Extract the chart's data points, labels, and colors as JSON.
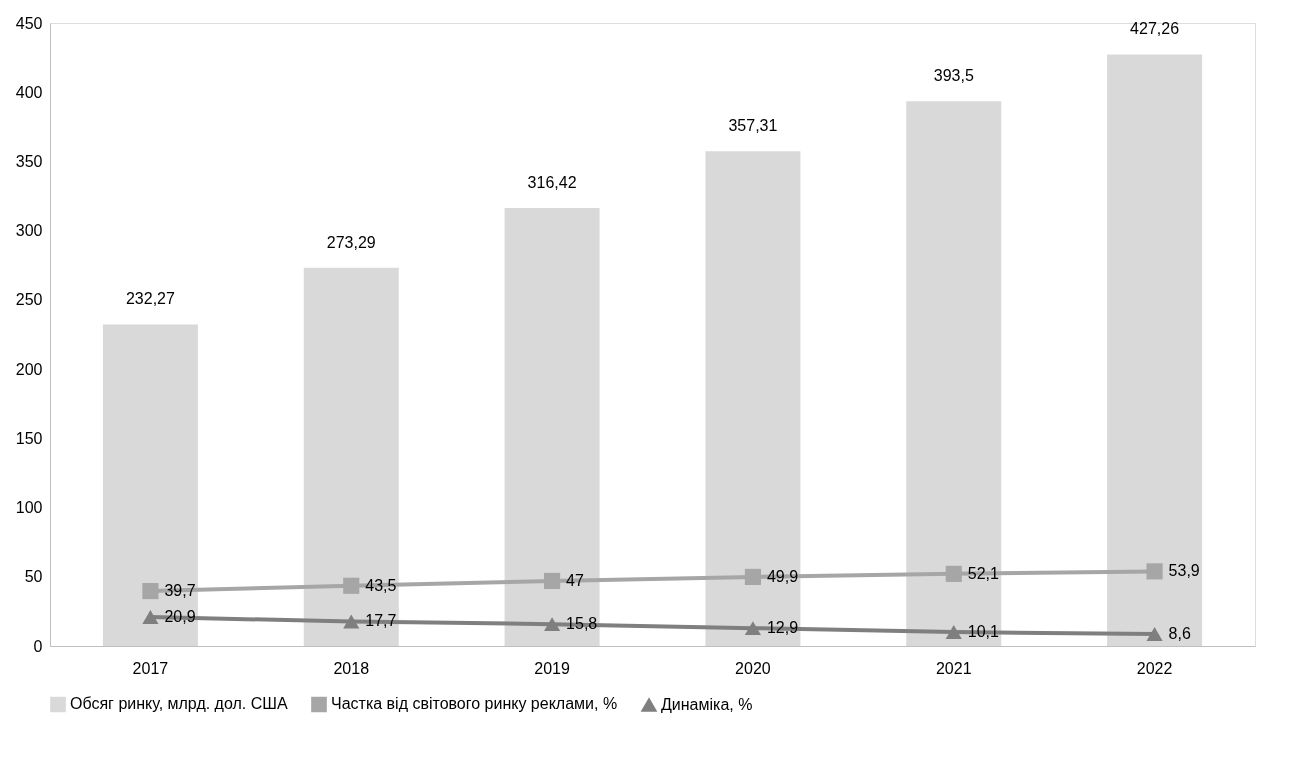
{
  "chart_data": {
    "type": "bar",
    "categories": [
      "2017",
      "2018",
      "2019",
      "2020",
      "2021",
      "2022"
    ],
    "series": [
      {
        "name": "Обсяг ринку, млрд. дол. США",
        "color": "#d9d9d9",
        "values": [
          232.27,
          273.29,
          316.42,
          357.31,
          393.5,
          427.26
        ],
        "value_labels": [
          "232,27",
          "273,29",
          "316,42",
          "357,31",
          "393,5",
          "427,26"
        ]
      },
      {
        "name": "Частка від світового ринку реклами, %",
        "type": "line",
        "marker": "square",
        "color": "#a6a6a6",
        "values": [
          39.7,
          43.5,
          47,
          49.9,
          52.1,
          53.9
        ],
        "value_labels": [
          "39,7",
          "43,5",
          "47",
          "49,9",
          "52,1",
          "53,9"
        ]
      },
      {
        "name": "Динаміка, %",
        "type": "line",
        "marker": "triangle",
        "color": "#7f7f7f",
        "values": [
          20.9,
          17.7,
          15.8,
          12.9,
          10.1,
          8.6
        ],
        "value_labels": [
          "20,9",
          "17,7",
          "15,8",
          "12,9",
          "10,1",
          "8,6"
        ]
      }
    ],
    "ylim": [
      0,
      450
    ],
    "yticks": [
      0,
      50,
      100,
      150,
      200,
      250,
      300,
      350,
      400,
      450
    ],
    "grid": false,
    "legend": "bottom",
    "line_style": "solid"
  }
}
